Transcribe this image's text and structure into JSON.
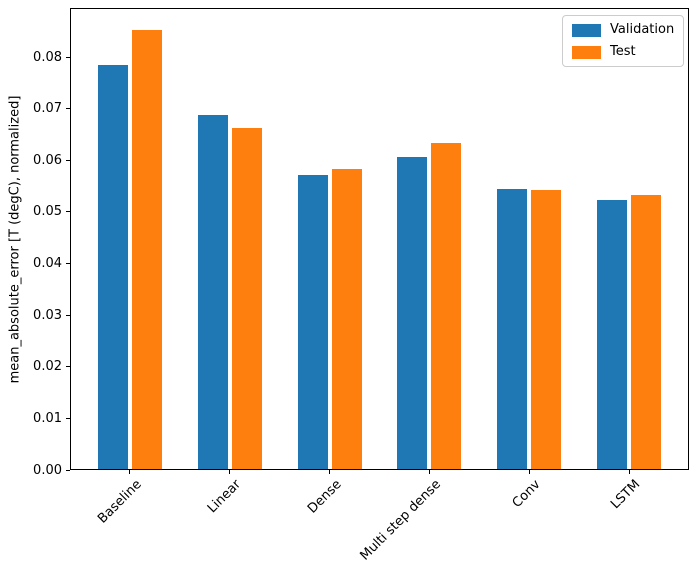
{
  "chart_data": {
    "type": "bar",
    "title": "",
    "xlabel": "",
    "ylabel": "mean_absolute_error [T (degC), normalized]",
    "categories": [
      "Baseline",
      "Linear",
      "Dense",
      "Multi step dense",
      "Conv",
      "LSTM"
    ],
    "series": [
      {
        "name": "Validation",
        "color": "#1f77b4",
        "values": [
          0.0785,
          0.0687,
          0.0571,
          0.0607,
          0.0545,
          0.0524
        ]
      },
      {
        "name": "Test",
        "color": "#ff7f0e",
        "values": [
          0.0852,
          0.0663,
          0.0583,
          0.0634,
          0.0543,
          0.0533
        ]
      }
    ],
    "ylim": [
      0,
      0.0895
    ],
    "yticks": [
      0.0,
      0.01,
      0.02,
      0.03,
      0.04,
      0.05,
      0.06,
      0.07,
      0.08
    ],
    "xtick_rotation_deg": 45,
    "grid": false,
    "legend_position": "upper right",
    "spine_color": "#000000",
    "legend_border_color": "#cccccc"
  }
}
